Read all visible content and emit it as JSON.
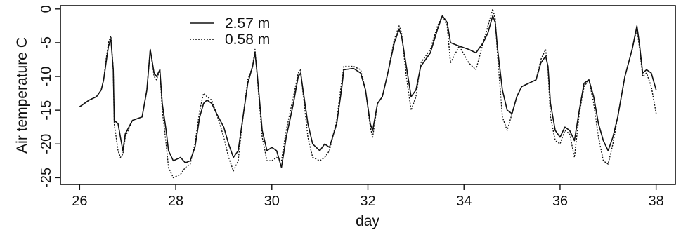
{
  "chart_data": {
    "type": "line",
    "title": "",
    "xlabel": "day",
    "ylabel": "Air temperature C",
    "xlim": [
      25.6,
      38.4
    ],
    "ylim": [
      -26,
      0.5
    ],
    "xticks": [
      26,
      28,
      30,
      32,
      34,
      36,
      38
    ],
    "yticks": [
      0,
      -5,
      -10,
      -15,
      -20,
      -25
    ],
    "grid": false,
    "legend_position": "top-left",
    "series": [
      {
        "name": "2.57 m",
        "line_style": "solid",
        "color": "#111111",
        "points": [
          [
            26.0,
            -14.5
          ],
          [
            26.2,
            -13.5
          ],
          [
            26.35,
            -13.0
          ],
          [
            26.45,
            -12.0
          ],
          [
            26.5,
            -10.5
          ],
          [
            26.55,
            -8.0
          ],
          [
            26.6,
            -5.5
          ],
          [
            26.65,
            -4.5
          ],
          [
            26.7,
            -9.0
          ],
          [
            26.72,
            -16.5
          ],
          [
            26.8,
            -17.0
          ],
          [
            26.85,
            -19.0
          ],
          [
            26.9,
            -21.0
          ],
          [
            26.95,
            -18.5
          ],
          [
            27.1,
            -16.5
          ],
          [
            27.3,
            -16.0
          ],
          [
            27.4,
            -12.0
          ],
          [
            27.47,
            -6.0
          ],
          [
            27.55,
            -9.5
          ],
          [
            27.6,
            -10.0
          ],
          [
            27.67,
            -9.0
          ],
          [
            27.72,
            -14.0
          ],
          [
            27.8,
            -18.0
          ],
          [
            27.85,
            -21.0
          ],
          [
            27.95,
            -22.5
          ],
          [
            28.1,
            -22.0
          ],
          [
            28.2,
            -22.8
          ],
          [
            28.3,
            -22.5
          ],
          [
            28.4,
            -20.5
          ],
          [
            28.5,
            -16.0
          ],
          [
            28.58,
            -14.0
          ],
          [
            28.65,
            -13.5
          ],
          [
            28.75,
            -14.0
          ],
          [
            28.85,
            -15.5
          ],
          [
            29.0,
            -17.5
          ],
          [
            29.1,
            -20.0
          ],
          [
            29.2,
            -22.0
          ],
          [
            29.3,
            -21.0
          ],
          [
            29.4,
            -16.0
          ],
          [
            29.5,
            -11.0
          ],
          [
            29.6,
            -8.5
          ],
          [
            29.65,
            -6.5
          ],
          [
            29.7,
            -10.0
          ],
          [
            29.8,
            -18.0
          ],
          [
            29.9,
            -21.0
          ],
          [
            30.0,
            -20.5
          ],
          [
            30.1,
            -21.0
          ],
          [
            30.2,
            -23.5
          ],
          [
            30.3,
            -19.0
          ],
          [
            30.45,
            -14.0
          ],
          [
            30.55,
            -10.0
          ],
          [
            30.6,
            -9.5
          ],
          [
            30.65,
            -12.0
          ],
          [
            30.75,
            -17.0
          ],
          [
            30.85,
            -20.0
          ],
          [
            31.0,
            -21.0
          ],
          [
            31.1,
            -20.0
          ],
          [
            31.2,
            -20.5
          ],
          [
            31.35,
            -17.0
          ],
          [
            31.45,
            -12.0
          ],
          [
            31.5,
            -9.0
          ],
          [
            31.7,
            -8.8
          ],
          [
            31.85,
            -9.5
          ],
          [
            31.95,
            -12.0
          ],
          [
            32.05,
            -17.0
          ],
          [
            32.1,
            -18.0
          ],
          [
            32.2,
            -14.0
          ],
          [
            32.3,
            -13.0
          ],
          [
            32.4,
            -10.0
          ],
          [
            32.55,
            -5.0
          ],
          [
            32.65,
            -3.0
          ],
          [
            32.7,
            -4.0
          ],
          [
            32.8,
            -8.5
          ],
          [
            32.9,
            -13.0
          ],
          [
            33.0,
            -12.0
          ],
          [
            33.1,
            -8.5
          ],
          [
            33.3,
            -6.5
          ],
          [
            33.45,
            -3.0
          ],
          [
            33.55,
            -1.0
          ],
          [
            33.65,
            -2.0
          ],
          [
            33.72,
            -5.0
          ],
          [
            33.9,
            -5.5
          ],
          [
            34.1,
            -6.0
          ],
          [
            34.25,
            -6.5
          ],
          [
            34.4,
            -5.0
          ],
          [
            34.5,
            -3.5
          ],
          [
            34.6,
            -1.0
          ],
          [
            34.65,
            -2.0
          ],
          [
            34.7,
            -6.0
          ],
          [
            34.8,
            -12.0
          ],
          [
            34.9,
            -15.0
          ],
          [
            35.0,
            -15.5
          ],
          [
            35.1,
            -13.0
          ],
          [
            35.2,
            -11.5
          ],
          [
            35.35,
            -11.0
          ],
          [
            35.5,
            -10.5
          ],
          [
            35.6,
            -8.0
          ],
          [
            35.7,
            -7.0
          ],
          [
            35.75,
            -8.5
          ],
          [
            35.8,
            -14.0
          ],
          [
            35.9,
            -18.0
          ],
          [
            36.0,
            -19.0
          ],
          [
            36.1,
            -17.5
          ],
          [
            36.2,
            -18.0
          ],
          [
            36.3,
            -19.5
          ],
          [
            36.4,
            -15.0
          ],
          [
            36.5,
            -11.0
          ],
          [
            36.6,
            -10.5
          ],
          [
            36.7,
            -13.0
          ],
          [
            36.8,
            -17.0
          ],
          [
            36.9,
            -19.5
          ],
          [
            37.0,
            -21.0
          ],
          [
            37.1,
            -19.0
          ],
          [
            37.2,
            -16.0
          ],
          [
            37.35,
            -10.0
          ],
          [
            37.5,
            -6.0
          ],
          [
            37.6,
            -2.5
          ],
          [
            37.65,
            -5.0
          ],
          [
            37.72,
            -9.5
          ],
          [
            37.8,
            -9.0
          ],
          [
            37.9,
            -9.5
          ],
          [
            38.0,
            -12.0
          ]
        ]
      },
      {
        "name": "0.58 m",
        "line_style": "dotted",
        "color": "#111111",
        "points": [
          [
            26.0,
            -14.5
          ],
          [
            26.2,
            -13.5
          ],
          [
            26.35,
            -13.0
          ],
          [
            26.45,
            -12.0
          ],
          [
            26.5,
            -10.5
          ],
          [
            26.55,
            -7.5
          ],
          [
            26.6,
            -5.0
          ],
          [
            26.65,
            -4.0
          ],
          [
            26.7,
            -9.0
          ],
          [
            26.72,
            -17.0
          ],
          [
            26.8,
            -21.0
          ],
          [
            26.85,
            -22.0
          ],
          [
            26.9,
            -21.5
          ],
          [
            26.95,
            -19.0
          ],
          [
            27.1,
            -16.5
          ],
          [
            27.3,
            -16.0
          ],
          [
            27.4,
            -12.0
          ],
          [
            27.47,
            -6.0
          ],
          [
            27.55,
            -10.0
          ],
          [
            27.6,
            -10.5
          ],
          [
            27.67,
            -9.0
          ],
          [
            27.72,
            -15.0
          ],
          [
            27.8,
            -20.0
          ],
          [
            27.85,
            -23.5
          ],
          [
            27.95,
            -25.0
          ],
          [
            28.1,
            -24.5
          ],
          [
            28.2,
            -23.5
          ],
          [
            28.3,
            -23.0
          ],
          [
            28.4,
            -20.0
          ],
          [
            28.5,
            -15.0
          ],
          [
            28.58,
            -12.5
          ],
          [
            28.65,
            -13.0
          ],
          [
            28.75,
            -13.5
          ],
          [
            28.85,
            -15.5
          ],
          [
            29.0,
            -19.0
          ],
          [
            29.1,
            -22.0
          ],
          [
            29.2,
            -24.0
          ],
          [
            29.3,
            -22.5
          ],
          [
            29.4,
            -16.0
          ],
          [
            29.5,
            -10.5
          ],
          [
            29.6,
            -8.5
          ],
          [
            29.65,
            -6.0
          ],
          [
            29.7,
            -10.5
          ],
          [
            29.8,
            -19.0
          ],
          [
            29.9,
            -22.5
          ],
          [
            30.0,
            -22.5
          ],
          [
            30.1,
            -22.0
          ],
          [
            30.2,
            -22.5
          ],
          [
            30.3,
            -18.0
          ],
          [
            30.45,
            -13.0
          ],
          [
            30.55,
            -9.5
          ],
          [
            30.6,
            -9.0
          ],
          [
            30.65,
            -12.5
          ],
          [
            30.75,
            -19.0
          ],
          [
            30.85,
            -22.0
          ],
          [
            31.0,
            -22.5
          ],
          [
            31.1,
            -22.0
          ],
          [
            31.2,
            -21.0
          ],
          [
            31.35,
            -16.5
          ],
          [
            31.45,
            -11.0
          ],
          [
            31.5,
            -8.5
          ],
          [
            31.7,
            -8.5
          ],
          [
            31.85,
            -9.0
          ],
          [
            31.95,
            -12.0
          ],
          [
            32.05,
            -17.5
          ],
          [
            32.1,
            -19.0
          ],
          [
            32.2,
            -14.0
          ],
          [
            32.3,
            -13.0
          ],
          [
            32.4,
            -10.0
          ],
          [
            32.55,
            -4.5
          ],
          [
            32.65,
            -2.5
          ],
          [
            32.7,
            -3.5
          ],
          [
            32.8,
            -10.0
          ],
          [
            32.9,
            -15.0
          ],
          [
            33.0,
            -13.0
          ],
          [
            33.1,
            -8.0
          ],
          [
            33.3,
            -6.0
          ],
          [
            33.45,
            -2.5
          ],
          [
            33.55,
            -1.0
          ],
          [
            33.65,
            -2.5
          ],
          [
            33.72,
            -8.0
          ],
          [
            33.9,
            -5.5
          ],
          [
            34.1,
            -8.0
          ],
          [
            34.25,
            -9.0
          ],
          [
            34.4,
            -5.0
          ],
          [
            34.5,
            -2.5
          ],
          [
            34.6,
            0.0
          ],
          [
            34.65,
            -1.5
          ],
          [
            34.7,
            -7.0
          ],
          [
            34.8,
            -16.0
          ],
          [
            34.9,
            -18.0
          ],
          [
            35.0,
            -15.5
          ],
          [
            35.1,
            -13.0
          ],
          [
            35.2,
            -11.5
          ],
          [
            35.35,
            -11.0
          ],
          [
            35.5,
            -10.5
          ],
          [
            35.6,
            -7.5
          ],
          [
            35.7,
            -6.0
          ],
          [
            35.75,
            -9.0
          ],
          [
            35.8,
            -16.0
          ],
          [
            35.9,
            -19.5
          ],
          [
            36.0,
            -20.0
          ],
          [
            36.1,
            -18.0
          ],
          [
            36.2,
            -18.5
          ],
          [
            36.3,
            -22.0
          ],
          [
            36.4,
            -15.5
          ],
          [
            36.5,
            -11.5
          ],
          [
            36.6,
            -10.5
          ],
          [
            36.7,
            -14.0
          ],
          [
            36.8,
            -19.0
          ],
          [
            36.9,
            -22.5
          ],
          [
            37.0,
            -23.0
          ],
          [
            37.1,
            -20.0
          ],
          [
            37.2,
            -16.0
          ],
          [
            37.35,
            -10.0
          ],
          [
            37.5,
            -6.0
          ],
          [
            37.6,
            -3.0
          ],
          [
            37.65,
            -5.5
          ],
          [
            37.72,
            -10.0
          ],
          [
            37.8,
            -9.5
          ],
          [
            37.9,
            -11.5
          ],
          [
            38.0,
            -15.5
          ]
        ]
      }
    ]
  }
}
